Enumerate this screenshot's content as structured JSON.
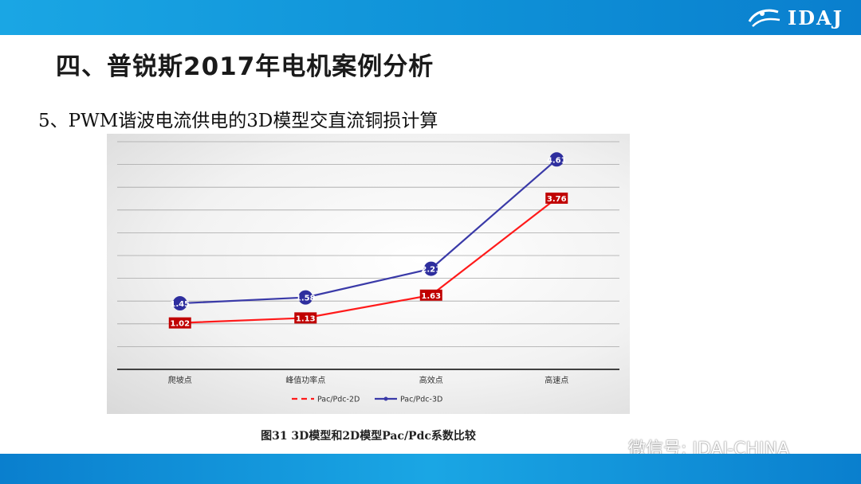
{
  "header": {
    "logo_text": "IDAJ",
    "logo_icon": "idaj-swoosh-logo-icon",
    "bar_color": "#1aa6e4"
  },
  "slide": {
    "title": "四、普锐斯2017年电机案例分析",
    "subtitle": "5、PWM谐波电流供电的3D模型交直流铜损计算",
    "caption": "图31 3D模型和2D模型Pac/Pdc系数比较"
  },
  "watermark": {
    "text": "微信号: IDAJ-CHINA",
    "icon": "wechat-icon"
  },
  "chart_data": {
    "type": "line",
    "categories": [
      "爬坡点",
      "峰值功率点",
      "高效点",
      "高速点"
    ],
    "series": [
      {
        "name": "Pac/Pdc-2D",
        "values": [
          1.02,
          1.13,
          1.63,
          3.76
        ],
        "color": "#ff1a1a",
        "label_bg": "#c00000",
        "dashed_legend": true
      },
      {
        "name": "Pac/Pdc-3D",
        "values": [
          1.45,
          1.58,
          2.21,
          4.61
        ],
        "color": "#3a3aa8",
        "label_bg": "#2e2e9e",
        "marker": "circle"
      }
    ],
    "ylim": [
      0,
      5
    ],
    "grid": true,
    "legend_position": "bottom",
    "title": "",
    "xlabel": "",
    "ylabel": ""
  }
}
